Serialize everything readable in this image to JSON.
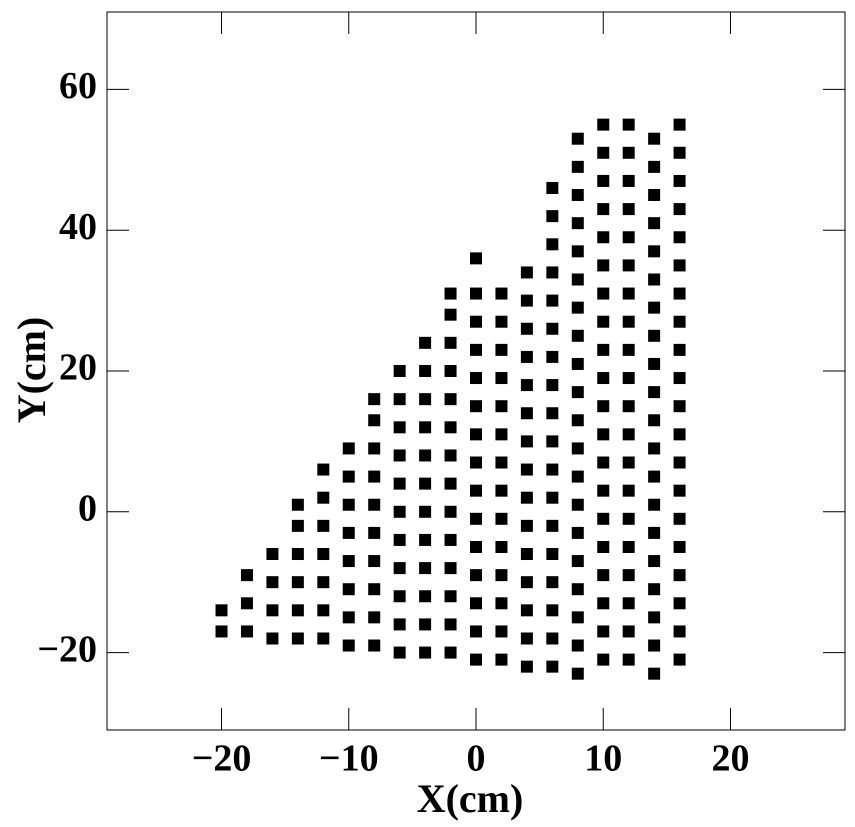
{
  "chart_data": {
    "type": "scatter",
    "x_label": "X(cm)",
    "y_label": "Y(cm)",
    "color": "#000000",
    "xlim": [
      -29,
      29
    ],
    "ylim": [
      -31,
      71
    ],
    "xticks": [
      {
        "value": -20,
        "label": "−20"
      },
      {
        "value": -10,
        "label": "−10"
      },
      0,
      10,
      20
    ],
    "yticks": [
      {
        "value": -20,
        "label": "−20"
      },
      0,
      20,
      40,
      60
    ],
    "x": [
      -20,
      -20,
      -18,
      -18,
      -18,
      -16,
      -16,
      -16,
      -16,
      -14,
      -14,
      -14,
      -14,
      -14,
      -14,
      -12,
      -12,
      -12,
      -12,
      -12,
      -12,
      -12,
      -10,
      -10,
      -10,
      -10,
      -10,
      -10,
      -10,
      -10,
      -8,
      -8,
      -8,
      -8,
      -8,
      -8,
      -8,
      -8,
      -8,
      -8,
      -6,
      -6,
      -6,
      -6,
      -6,
      -6,
      -6,
      -6,
      -6,
      -6,
      -6,
      -4,
      -4,
      -4,
      -4,
      -4,
      -4,
      -4,
      -4,
      -4,
      -4,
      -4,
      -4,
      -2,
      -2,
      -2,
      -2,
      -2,
      -2,
      -2,
      -2,
      -2,
      -2,
      -2,
      -2,
      -2,
      -2,
      0,
      0,
      0,
      0,
      0,
      0,
      0,
      0,
      0,
      0,
      0,
      0,
      0,
      0,
      0,
      2,
      2,
      2,
      2,
      2,
      2,
      2,
      2,
      2,
      2,
      2,
      2,
      2,
      2,
      4,
      4,
      4,
      4,
      4,
      4,
      4,
      4,
      4,
      4,
      4,
      4,
      4,
      4,
      4,
      6,
      6,
      6,
      6,
      6,
      6,
      6,
      6,
      6,
      6,
      6,
      6,
      6,
      6,
      6,
      6,
      6,
      6,
      8,
      8,
      8,
      8,
      8,
      8,
      8,
      8,
      8,
      8,
      8,
      8,
      8,
      8,
      8,
      8,
      8,
      8,
      8,
      8,
      10,
      10,
      10,
      10,
      10,
      10,
      10,
      10,
      10,
      10,
      10,
      10,
      10,
      10,
      10,
      10,
      10,
      10,
      10,
      10,
      12,
      12,
      12,
      12,
      12,
      12,
      12,
      12,
      12,
      12,
      12,
      12,
      12,
      12,
      12,
      12,
      12,
      12,
      12,
      12,
      14,
      14,
      14,
      14,
      14,
      14,
      14,
      14,
      14,
      14,
      14,
      14,
      14,
      14,
      14,
      14,
      14,
      14,
      14,
      14,
      16,
      16,
      16,
      16,
      16,
      16,
      16,
      16,
      16,
      16,
      16,
      16,
      16,
      16,
      16,
      16,
      16,
      16,
      16,
      16
    ],
    "values": [
      -17,
      -14,
      -17,
      -13,
      -9,
      -18,
      -14,
      -10,
      -6,
      -18,
      -14,
      -10,
      -6,
      -2,
      1,
      -18,
      -14,
      -10,
      -6,
      -2,
      2,
      6,
      -19,
      -15,
      -11,
      -7,
      -3,
      1,
      5,
      9,
      -19,
      -15,
      -11,
      -7,
      -3,
      1,
      5,
      9,
      13,
      16,
      -20,
      -16,
      -12,
      -8,
      -4,
      0,
      4,
      8,
      12,
      16,
      20,
      -20,
      -16,
      -12,
      -8,
      -4,
      0,
      4,
      8,
      12,
      16,
      20,
      24,
      -20,
      -16,
      -12,
      -8,
      -4,
      0,
      4,
      8,
      12,
      16,
      20,
      24,
      28,
      31,
      -21,
      -17,
      -13,
      -9,
      -5,
      -1,
      3,
      7,
      11,
      15,
      19,
      23,
      27,
      31,
      36,
      -21,
      -17,
      -13,
      -9,
      -5,
      -1,
      3,
      7,
      11,
      15,
      19,
      23,
      27,
      31,
      -22,
      -18,
      -14,
      -10,
      -6,
      -2,
      2,
      6,
      10,
      14,
      18,
      22,
      26,
      30,
      34,
      -22,
      -18,
      -14,
      -10,
      -6,
      -2,
      2,
      6,
      10,
      14,
      18,
      22,
      26,
      30,
      34,
      38,
      42,
      46,
      -23,
      -19,
      -15,
      -11,
      -7,
      -3,
      1,
      5,
      9,
      13,
      17,
      21,
      25,
      29,
      33,
      37,
      41,
      45,
      49,
      53,
      -21,
      -17,
      -13,
      -9,
      -5,
      -1,
      3,
      7,
      11,
      15,
      19,
      23,
      27,
      31,
      35,
      39,
      43,
      47,
      51,
      55,
      -21,
      -17,
      -13,
      -9,
      -5,
      -1,
      3,
      7,
      11,
      15,
      19,
      23,
      27,
      31,
      35,
      39,
      43,
      47,
      51,
      55,
      -23,
      -19,
      -15,
      -11,
      -7,
      -3,
      1,
      5,
      9,
      13,
      17,
      21,
      25,
      29,
      33,
      37,
      41,
      45,
      49,
      53,
      -21,
      -17,
      -13,
      -9,
      -5,
      -1,
      3,
      7,
      11,
      15,
      19,
      23,
      27,
      31,
      35,
      39,
      43,
      47,
      51,
      55
    ]
  }
}
